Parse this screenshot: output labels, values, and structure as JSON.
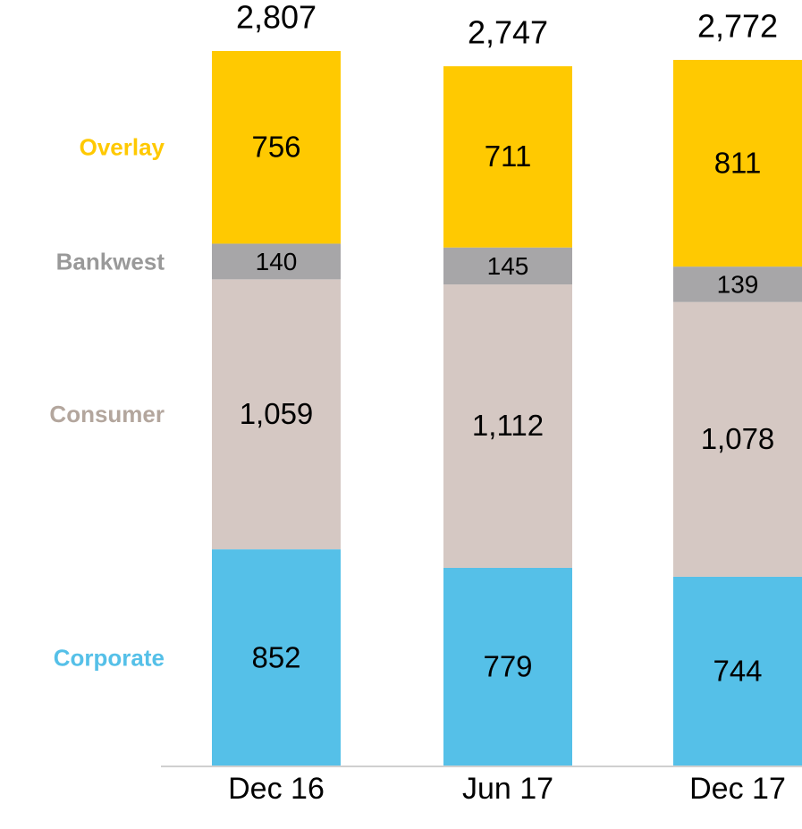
{
  "chart_data": {
    "type": "stacked-bar",
    "categories": [
      "Dec 16",
      "Jun 17",
      "Dec 17"
    ],
    "series": [
      {
        "name": "Corporate",
        "color": "#55c0e8",
        "values": [
          852,
          779,
          744
        ]
      },
      {
        "name": "Consumer",
        "color": "#d5c8c3",
        "legend_color": "#b3a69d",
        "values": [
          1059,
          1112,
          1078
        ],
        "value_labels": [
          "1,059",
          "1,112",
          "1,078"
        ]
      },
      {
        "name": "Bankwest",
        "color": "#a7a6a8",
        "legend_color": "#999999",
        "values": [
          140,
          145,
          139
        ]
      },
      {
        "name": "Overlay",
        "color": "#ffc901",
        "legend_color": "#ffc901",
        "values": [
          756,
          711,
          811
        ]
      }
    ],
    "totals": [
      2807,
      2747,
      2772
    ],
    "total_labels": [
      "2,807",
      "2,747",
      "2,772"
    ]
  }
}
